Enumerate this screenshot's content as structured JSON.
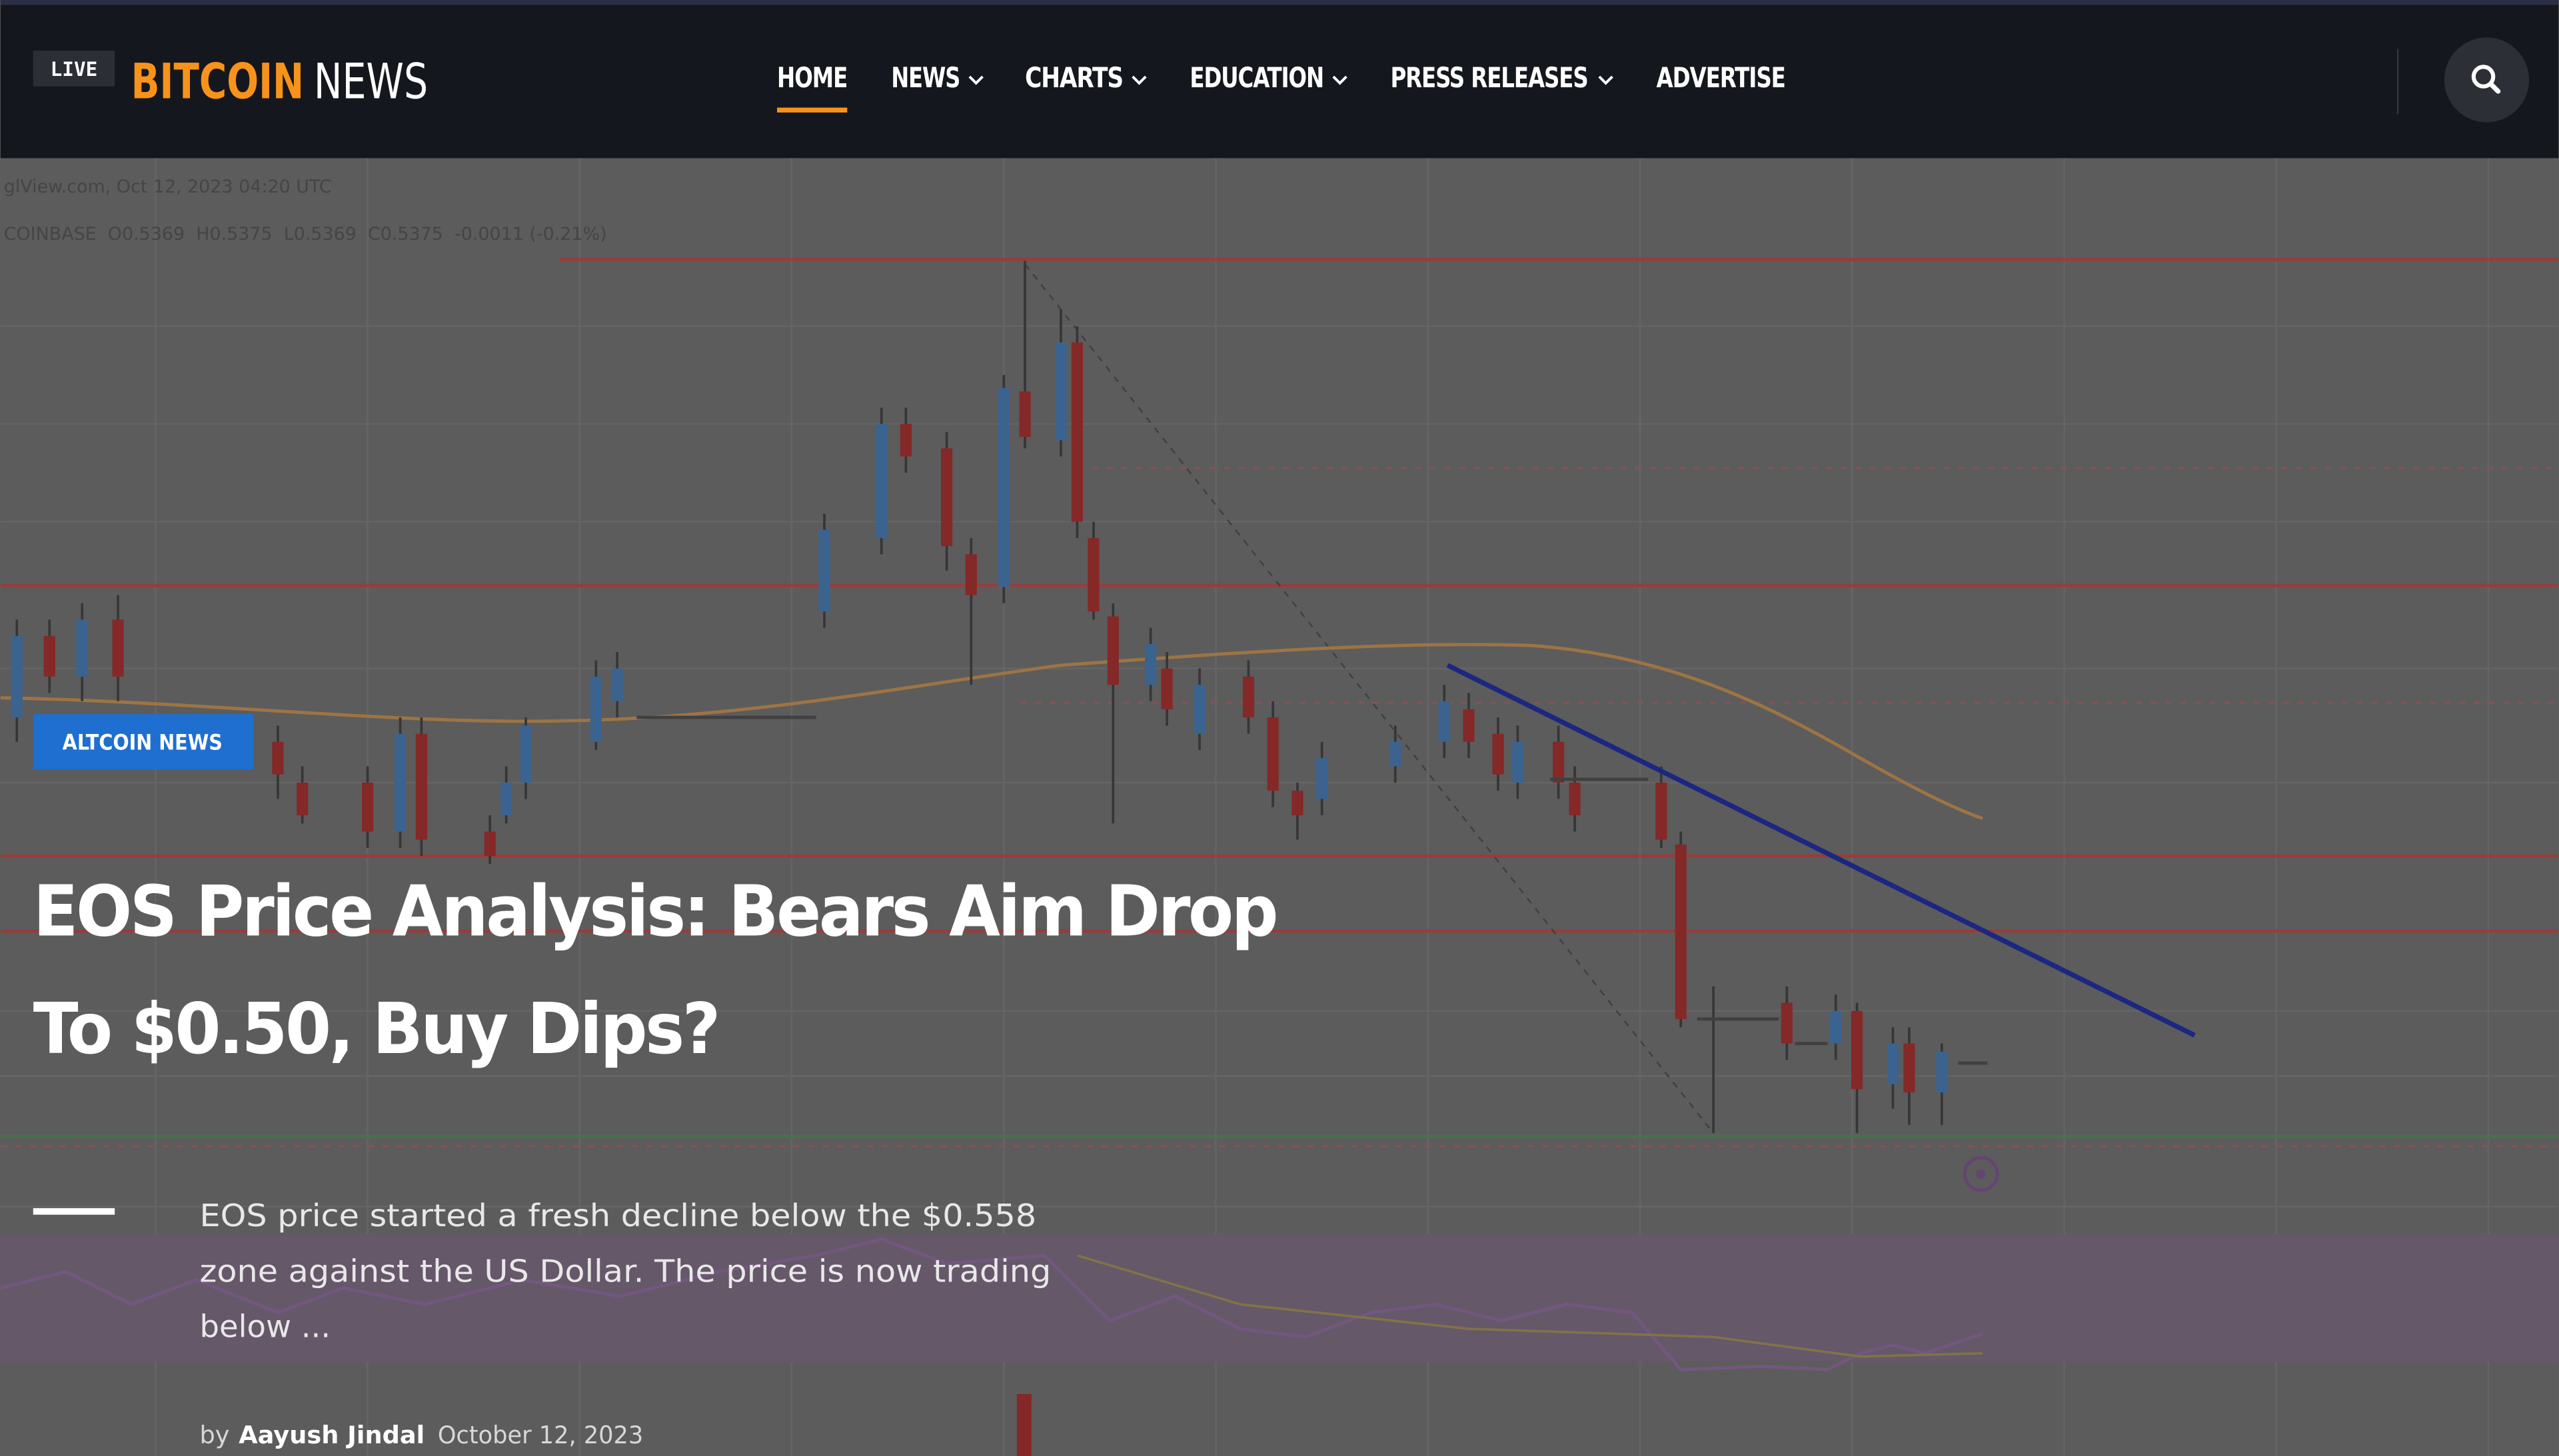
{
  "header": {
    "logo": {
      "badge": "LIVE",
      "brand": "BITCOIN",
      "brand_suffix": "NEWS"
    },
    "nav": [
      "HOME",
      "NEWS",
      "CHARTS",
      "EDUCATION",
      "PRESS RELEASES",
      "ADVERTISE"
    ]
  },
  "hero": {
    "chart_source": "glView.com, Oct 12, 2023 04:20 UTC",
    "chart_ohlc": "COINBASE  O0.5369  H0.5375  L0.5369  C0.5375  -0.0011 (-0.21%)",
    "category": "ALTCOIN NEWS",
    "title_lines": [
      "EOS Price Analysis: Bears Aim Drop",
      "To $0.50, Buy Dips?"
    ],
    "excerpt_lines": [
      "EOS price started a fresh decline below the $0.558",
      "zone against the US Dollar. The price is now trading",
      "below ..."
    ],
    "author_prefix": "by",
    "author": "Aayush Jindal",
    "date": "October 12, 2023"
  }
}
